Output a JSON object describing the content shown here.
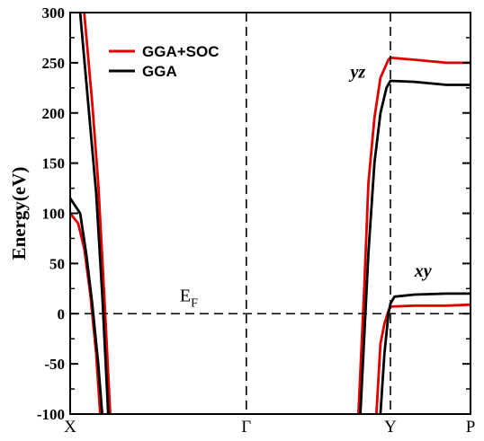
{
  "chart_data": {
    "type": "line",
    "title": "",
    "xlabel": "",
    "ylabel": "Energy(eV)",
    "ylim": [
      -100,
      300
    ],
    "yticks": [
      -100,
      -50,
      0,
      50,
      100,
      150,
      200,
      250,
      300
    ],
    "grid": false,
    "legend_position": "top-left",
    "kpath": {
      "labels": [
        "X",
        "Γ",
        "Y",
        "P"
      ],
      "positions": [
        0,
        0.44,
        0.8,
        1.0
      ]
    },
    "fermi_level": {
      "label_main": "E",
      "label_sub": "F",
      "value": 0
    },
    "annotations": [
      {
        "text": "yz",
        "x": 0.7,
        "y": 235
      },
      {
        "text": "xy",
        "x": 0.86,
        "y": 37
      }
    ],
    "series": [
      {
        "name": "GGA+SOC",
        "color": "#e00000",
        "bands": [
          [
            [
              0,
              100
            ],
            [
              0.02,
              90
            ],
            [
              0.035,
              65
            ],
            [
              0.05,
              20
            ],
            [
              0.065,
              -40
            ],
            [
              0.075,
              -100
            ]
          ],
          [
            [
              0.035,
              300
            ],
            [
              0.055,
              210
            ],
            [
              0.07,
              130
            ],
            [
              0.085,
              20
            ],
            [
              0.1,
              -100
            ]
          ],
          [
            [
              0.72,
              -100
            ],
            [
              0.735,
              30
            ],
            [
              0.745,
              130
            ],
            [
              0.76,
              195
            ],
            [
              0.775,
              235
            ],
            [
              0.795,
              253
            ],
            [
              0.8,
              255
            ],
            [
              0.86,
              253
            ],
            [
              0.94,
              250
            ],
            [
              1.0,
              250
            ]
          ],
          [
            [
              0.765,
              -100
            ],
            [
              0.775,
              -30
            ],
            [
              0.785,
              -10
            ],
            [
              0.795,
              3
            ],
            [
              0.8,
              7
            ],
            [
              0.86,
              8
            ],
            [
              0.94,
              8
            ],
            [
              1.0,
              9
            ]
          ]
        ]
      },
      {
        "name": "GGA",
        "color": "#000000",
        "bands": [
          [
            [
              0,
              115
            ],
            [
              0.025,
              100
            ],
            [
              0.04,
              60
            ],
            [
              0.055,
              10
            ],
            [
              0.07,
              -50
            ],
            [
              0.08,
              -100
            ]
          ],
          [
            [
              0.025,
              300
            ],
            [
              0.045,
              210
            ],
            [
              0.065,
              120
            ],
            [
              0.08,
              20
            ],
            [
              0.095,
              -100
            ]
          ],
          [
            [
              0.725,
              -100
            ],
            [
              0.745,
              60
            ],
            [
              0.76,
              150
            ],
            [
              0.775,
              200
            ],
            [
              0.79,
              225
            ],
            [
              0.8,
              232
            ],
            [
              0.86,
              231
            ],
            [
              0.94,
              228
            ],
            [
              1.0,
              228
            ]
          ],
          [
            [
              0.775,
              -100
            ],
            [
              0.785,
              -40
            ],
            [
              0.795,
              0
            ],
            [
              0.8,
              10
            ],
            [
              0.81,
              17
            ],
            [
              0.86,
              19
            ],
            [
              0.94,
              20
            ],
            [
              1.0,
              20
            ]
          ]
        ]
      }
    ]
  }
}
